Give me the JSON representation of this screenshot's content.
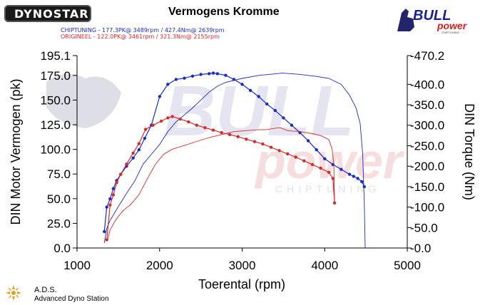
{
  "header": {
    "logo_text": "DYNOSTAR",
    "title": "Vermogens Kromme",
    "legend": [
      {
        "text": "CHIPTUNING   - 177.3PK@ 3489rpm / 427.4Nm@ 2639rpm",
        "color": "#1a2cc4"
      },
      {
        "text": "ORIGINEEL   - 122.0PK@ 3461rpm / 321.3Nm@ 2155rpm",
        "color": "#d42a2a"
      }
    ],
    "brand_logo_text": "BULL power",
    "brand_logo_sub": "CHIPTUNING"
  },
  "footer": {
    "station_name": "A.D.S.",
    "station_desc": "Advanced Dyno Station"
  },
  "watermark": {
    "line1": "BULL",
    "line2": "power",
    "line3": "CHIPTUNING"
  },
  "chart_data": {
    "type": "line",
    "title": "Vermogens Kromme",
    "xlabel": "Toerental (rpm)",
    "ylabel_left": "DIN Motor Vermogen (pk)",
    "ylabel_right": "DIN Torque (Nm)",
    "xlim": [
      1000,
      5000
    ],
    "ylim_left": [
      0,
      195.1
    ],
    "ylim_right": [
      0,
      470.2
    ],
    "x_ticks": [
      "1000",
      "2000",
      "3000",
      "4000",
      "5000"
    ],
    "y_left_ticks": [
      "0.0",
      "25.0",
      "50.0",
      "75.0",
      "100.0",
      "125.0",
      "150.0",
      "175.0",
      "195.1"
    ],
    "y_left_values": [
      0,
      25,
      50,
      75,
      100,
      125,
      150,
      175,
      195.1
    ],
    "y_right_ticks": [
      "0.0",
      "50.0",
      "100.0",
      "150.0",
      "200.0",
      "250.0",
      "300.0",
      "350.0",
      "400.0",
      "470.2"
    ],
    "y_right_values": [
      0,
      50,
      100,
      150,
      200,
      250,
      300,
      350,
      400,
      470.2
    ],
    "grid": false,
    "legend_position": "top-left",
    "colors": {
      "chiptuning": "#1a2cc4",
      "origineel": "#d42a2a"
    },
    "series": [
      {
        "name": "CHIPTUNING",
        "quantity": "torque",
        "axis": "right",
        "color": "#1a2cc4",
        "markers": true,
        "x": [
          1330,
          1360,
          1400,
          1440,
          1480,
          1530,
          1600,
          1680,
          1750,
          1820,
          1900,
          2000,
          2100,
          2200,
          2300,
          2400,
          2500,
          2600,
          2650,
          2700,
          2800,
          2900,
          3000,
          3100,
          3200,
          3300,
          3400,
          3500,
          3600,
          3700,
          3800,
          3900,
          4000,
          4100,
          4200,
          4300,
          4350,
          4400,
          4450,
          4480
        ],
        "y": [
          40,
          100,
          120,
          145,
          165,
          180,
          200,
          220,
          240,
          268,
          300,
          370,
          400,
          412,
          415,
          420,
          424,
          426,
          427.4,
          426,
          422,
          412,
          400,
          385,
          370,
          352,
          336,
          318,
          300,
          282,
          262,
          240,
          218,
          204,
          192,
          180,
          175,
          170,
          162,
          150
        ]
      },
      {
        "name": "CHIPTUNING",
        "quantity": "power",
        "axis": "left",
        "color": "#1a2cc4",
        "markers": false,
        "x": [
          1330,
          1360,
          1400,
          1450,
          1500,
          1560,
          1620,
          1700,
          1800,
          1900,
          2000,
          2100,
          2200,
          2300,
          2400,
          2500,
          2600,
          2700,
          2800,
          3000,
          3200,
          3489,
          3700,
          3900,
          4050,
          4200,
          4300,
          4380,
          4430,
          4460,
          4480,
          4490
        ],
        "y": [
          5,
          20,
          28,
          35,
          42,
          50,
          58,
          68,
          85,
          95,
          105,
          118,
          128,
          135,
          142,
          150,
          158,
          164,
          168,
          172,
          175,
          177.3,
          176,
          174,
          172,
          166,
          155,
          142,
          126,
          95,
          45,
          0
        ]
      },
      {
        "name": "ORIGINEEL",
        "quantity": "torque",
        "axis": "right",
        "color": "#d42a2a",
        "markers": true,
        "x": [
          1360,
          1400,
          1440,
          1480,
          1530,
          1600,
          1680,
          1750,
          1830,
          1920,
          2020,
          2100,
          2155,
          2250,
          2350,
          2450,
          2550,
          2650,
          2750,
          2850,
          2950,
          3050,
          3150,
          3250,
          3350,
          3450,
          3550,
          3650,
          3750,
          3850,
          3950,
          4050,
          4100,
          4120
        ],
        "y": [
          20,
          105,
          130,
          160,
          180,
          205,
          232,
          255,
          290,
          300,
          310,
          318,
          321.3,
          315,
          308,
          300,
          294,
          288,
          282,
          277,
          272,
          266,
          260,
          254,
          246,
          238,
          230,
          222,
          213,
          204,
          195,
          185,
          170,
          110
        ]
      },
      {
        "name": "ORIGINEEL",
        "quantity": "power",
        "axis": "left",
        "color": "#d42a2a",
        "markers": false,
        "x": [
          1370,
          1400,
          1450,
          1500,
          1560,
          1650,
          1750,
          1850,
          1950,
          2050,
          2150,
          2300,
          2450,
          2600,
          2750,
          2900,
          3050,
          3200,
          3300,
          3400,
          3461,
          3550,
          3700,
          3850,
          3950,
          4050,
          4090,
          4110,
          4120
        ],
        "y": [
          8,
          18,
          26,
          32,
          38,
          44,
          54,
          70,
          85,
          95,
          100,
          104,
          108,
          112,
          115,
          118,
          119,
          120,
          120,
          121.5,
          122,
          119,
          118,
          116,
          114,
          110,
          100,
          85,
          45
        ]
      }
    ]
  }
}
